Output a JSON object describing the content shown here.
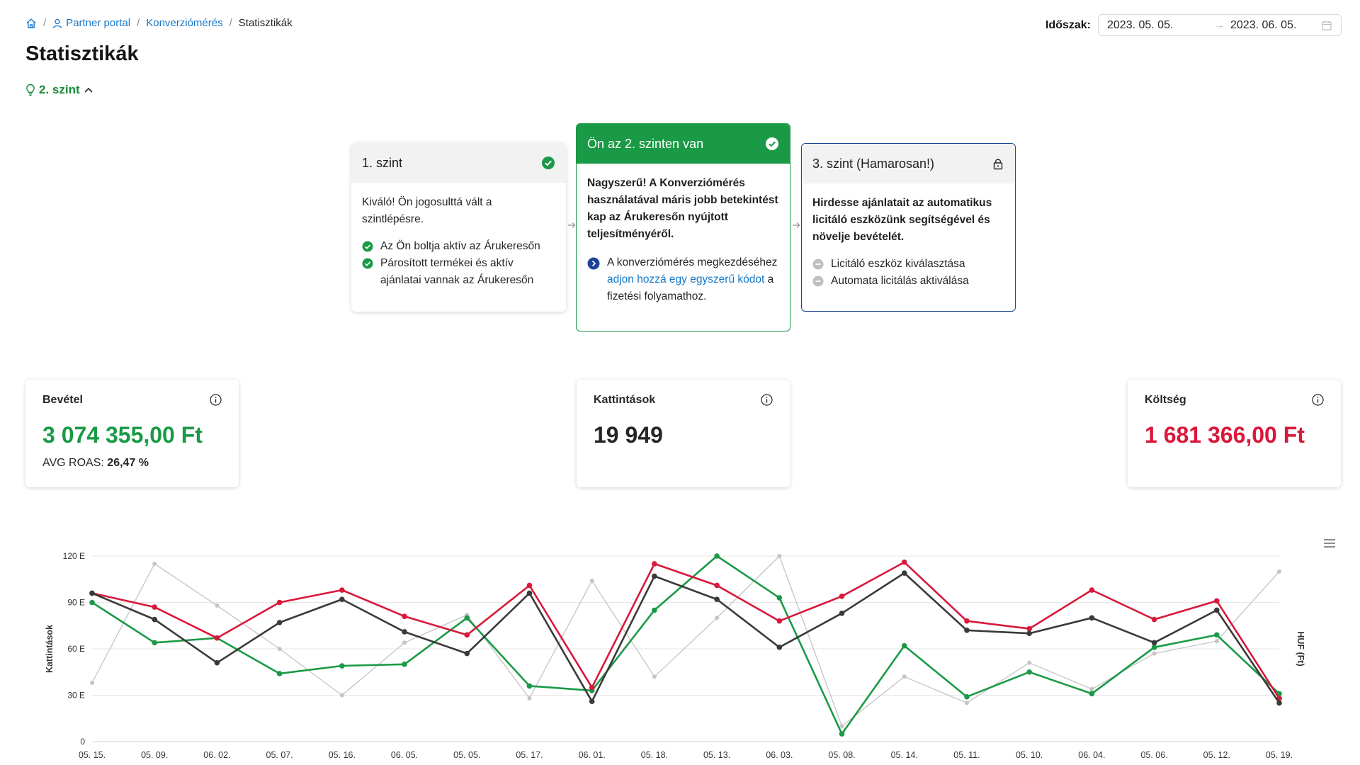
{
  "breadcrumb": {
    "home_icon": "home-icon",
    "items": [
      {
        "label": "Partner portal",
        "icon": "user-icon"
      },
      {
        "label": "Konverziómérés"
      }
    ],
    "current": "Statisztikák"
  },
  "page": {
    "title": "Statisztikák",
    "level_toggle": "2. szint"
  },
  "period": {
    "label": "Időszak:",
    "start": "2023. 05. 05.",
    "end": "2023. 06. 05."
  },
  "levels": {
    "step1": {
      "title": "1. szint",
      "intro": "Kiváló! Ön jogosulttá vált a szintlépésre.",
      "items": [
        "Az Ön boltja aktív az Árukeresőn",
        "Párosított termékei és aktív ajánlatai vannak az Árukeresőn"
      ]
    },
    "step2": {
      "title": "Ön az 2. szinten van",
      "lead": "Nagyszerű! A Konverziómérés használatával máris jobb betekintést kap az Árukeresőn nyújtott teljesítményéről.",
      "hint_before": "A konverziómérés megkezdéséhez ",
      "hint_link": "adjon hozzá egy egyszerű kódot",
      "hint_after": " a fizetési folyamathoz."
    },
    "step3": {
      "title": "3. szint (Hamarosan!)",
      "lead": "Hirdesse ajánlatait az automatikus licitáló eszközünk segítségével és növelje bevételét.",
      "items": [
        "Licitáló eszköz kiválasztása",
        "Automata licitálás aktiválása"
      ]
    }
  },
  "kpis": {
    "revenue": {
      "label": "Bevétel",
      "value": "3 074 355,00 Ft",
      "sub_label": "AVG ROAS:",
      "sub_value": "26,47 %",
      "color": "#1a9a46"
    },
    "clicks": {
      "label": "Kattintások",
      "value": "19 949",
      "color": "#262626"
    },
    "cost": {
      "label": "Költség",
      "value": "1 681 366,00 Ft",
      "color": "#d9183b"
    }
  },
  "colors": {
    "green": "#1a9a46",
    "navy": "#1d4496",
    "red": "#d9183b",
    "dark": "#3a3a3a",
    "light": "#c4c4c4"
  },
  "chart_data": {
    "type": "line",
    "categories": [
      "05. 15.",
      "05. 09.",
      "06. 02.",
      "05. 07.",
      "05. 16.",
      "06. 05.",
      "05. 05.",
      "05. 17.",
      "06. 01.",
      "05. 18.",
      "05. 13.",
      "06. 03.",
      "05. 08.",
      "05. 14.",
      "05. 11.",
      "05. 10.",
      "06. 04.",
      "05. 06.",
      "05. 12.",
      "05. 19."
    ],
    "ylabel": "Kattintások",
    "y2label": "HUF (Ft)",
    "yticks": [
      "0",
      "30 E",
      "60 E",
      "90 E",
      "120 E"
    ],
    "ylim": [
      0,
      120000
    ],
    "grid": true,
    "series": [
      {
        "color": "#c4c4c4",
        "values": [
          38000,
          115000,
          88000,
          60000,
          30000,
          64000,
          82000,
          28000,
          104000,
          42000,
          80000,
          120000,
          10000,
          42000,
          25000,
          51000,
          34000,
          57000,
          65000,
          110000
        ]
      },
      {
        "color": "#1a9a46",
        "values": [
          90000,
          64000,
          67000,
          44000,
          49000,
          50000,
          80000,
          36000,
          33000,
          85000,
          120000,
          93000,
          5000,
          62000,
          29000,
          45000,
          31000,
          61000,
          69000,
          31000
        ]
      },
      {
        "color": "#d9183b",
        "values": [
          96000,
          87000,
          67000,
          90000,
          98000,
          81000,
          69000,
          101000,
          35000,
          115000,
          101000,
          78000,
          94000,
          116000,
          78000,
          73000,
          98000,
          79000,
          91000,
          28000
        ]
      },
      {
        "color": "#3a3a3a",
        "values": [
          96000,
          79000,
          51000,
          77000,
          92000,
          71000,
          57000,
          96000,
          26000,
          107000,
          92000,
          61000,
          83000,
          109000,
          72000,
          70000,
          80000,
          64000,
          85000,
          25000
        ]
      }
    ]
  }
}
